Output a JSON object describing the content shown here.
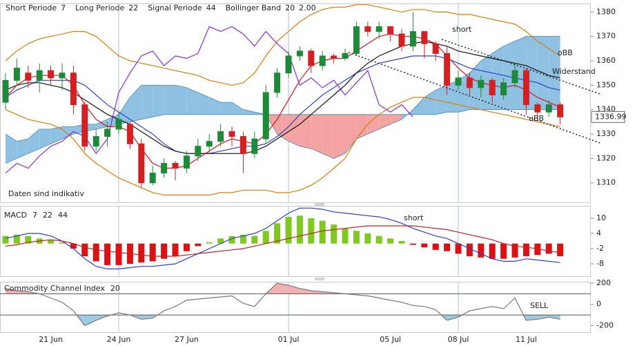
{
  "chart_data": [
    {
      "type": "candlestick",
      "legend": [
        {
          "label": "Short Periode",
          "params": [
            7
          ]
        },
        {
          "label": "Long Periode",
          "params": [
            22
          ]
        },
        {
          "label": "Signal Periode",
          "params": [
            44
          ]
        },
        {
          "label": "Bollinger Band",
          "params": [
            20,
            "2.00"
          ],
          "params_color": "#e07b00"
        }
      ],
      "categories": [
        null,
        null,
        null,
        null,
        "21 Jun",
        null,
        null,
        null,
        null,
        null,
        "24 Jun",
        null,
        null,
        null,
        null,
        null,
        "27 Jun",
        null,
        null,
        null,
        null,
        null,
        null,
        null,
        null,
        "01 Jul",
        null,
        null,
        null,
        null,
        null,
        null,
        null,
        null,
        "05 Jul",
        null,
        null,
        null,
        null,
        null,
        "08 Jul",
        null,
        null,
        null,
        null,
        null,
        "11 Jul",
        null,
        null,
        null
      ],
      "open": [
        1343,
        1352,
        1355,
        1352,
        1356,
        1353,
        1355,
        1342,
        1325,
        1329,
        1332,
        1334,
        1326,
        1310,
        1314,
        1318,
        1316,
        1321,
        1325,
        1327,
        1331,
        1329,
        1322,
        1328,
        1347,
        1355,
        1362,
        1364,
        1358,
        1362,
        1361,
        1363,
        1374,
        1372,
        1374,
        1371,
        1366,
        1372,
        1367,
        1363,
        1350,
        1353,
        1349,
        1352,
        1346,
        1351,
        1356,
        1342,
        1339,
        1342
      ],
      "high": [
        1355,
        1361,
        1358,
        1359,
        1358,
        1359,
        1358,
        1343,
        1332,
        1335,
        1339,
        1335,
        1328,
        1317,
        1320,
        1319,
        1323,
        1328,
        1330,
        1334,
        1333,
        1331,
        1331,
        1350,
        1357,
        1364,
        1366,
        1365,
        1364,
        1363,
        1365,
        1376,
        1376,
        1376,
        1374,
        1373,
        1380,
        1372,
        1368,
        1366,
        1356,
        1355,
        1354,
        1353,
        1353,
        1359,
        1357,
        1343,
        1344,
        1343
      ],
      "low": [
        1340,
        1350,
        1349,
        1347,
        1350,
        1348,
        1338,
        1323,
        1323,
        1325,
        1330,
        1324,
        1308,
        1309,
        1312,
        1311,
        1314,
        1319,
        1322,
        1325,
        1325,
        1314,
        1320,
        1326,
        1345,
        1353,
        1360,
        1355,
        1356,
        1359,
        1360,
        1362,
        1370,
        1369,
        1368,
        1364,
        1364,
        1361,
        1360,
        1346,
        1348,
        1346,
        1345,
        1343,
        1344,
        1349,
        1338,
        1336,
        1337,
        1334
      ],
      "close": [
        1352,
        1357,
        1352,
        1356,
        1353,
        1355,
        1342,
        1325,
        1329,
        1332,
        1336,
        1326,
        1310,
        1314,
        1318,
        1316,
        1321,
        1325,
        1327,
        1331,
        1329,
        1322,
        1328,
        1347,
        1355,
        1362,
        1364,
        1358,
        1362,
        1361,
        1363,
        1374,
        1372,
        1374,
        1371,
        1366,
        1372,
        1367,
        1363,
        1350,
        1353,
        1349,
        1352,
        1346,
        1351,
        1356,
        1342,
        1339,
        1342,
        1337
      ],
      "up_color": "#1d8a3a",
      "down_color": "#d42020",
      "cloud": {
        "span_a": [
          1330,
          1327,
          1328,
          1332,
          1332,
          1333,
          1333,
          1334,
          1334,
          1336,
          1338,
          1345,
          1350,
          1350,
          1350,
          1350,
          1349,
          1347,
          1345,
          1343,
          1343,
          1340,
          1339,
          1338,
          1330,
          1327,
          1325,
          1324,
          1322,
          1320,
          1322,
          1328,
          1330,
          1332,
          1334,
          1336,
          1340,
          1345,
          1348,
          1350,
          1352,
          1355,
          1360,
          1363,
          1366,
          1368,
          1370,
          1370,
          1370,
          1370
        ],
        "span_b": [
          1318,
          1320,
          1322,
          1324,
          1326,
          1328,
          1330,
          1331,
          1332,
          1333,
          1334,
          1335,
          1336,
          1337,
          1338,
          1338,
          1338,
          1338,
          1338,
          1338,
          1338,
          1338,
          1338,
          1338,
          1338,
          1338,
          1338,
          1338,
          1338,
          1338,
          1338,
          1338,
          1338,
          1338,
          1338,
          1338,
          1338,
          1338,
          1338,
          1339,
          1339,
          1340,
          1340,
          1340,
          1340,
          1340,
          1340,
          1340,
          1340,
          1340
        ],
        "up_color": "#8fc1e3",
        "down_color": "#f4a3a3",
        "line_color": "#4a86b8"
      },
      "series": [
        {
          "color": "#e07b00",
          "values": [
            1360,
            1364,
            1367,
            1369,
            1370,
            1371,
            1372,
            1372,
            1370,
            1366,
            1362,
            1360,
            1359,
            1358,
            1357,
            1356,
            1355,
            1354,
            1352,
            1351,
            1350,
            1351,
            1355,
            1362,
            1368,
            1372,
            1376,
            1379,
            1381,
            1382,
            1382,
            1383,
            1383,
            1382,
            1381,
            1380,
            1381,
            1381,
            1380,
            1380,
            1379,
            1379,
            1378,
            1377,
            1376,
            1375,
            1372,
            1368,
            1365,
            1362
          ]
        },
        {
          "color": "#e07b00",
          "values": [
            1340,
            1338,
            1336,
            1335,
            1334,
            1332,
            1328,
            1322,
            1318,
            1315,
            1312,
            1310,
            1308,
            1306,
            1305,
            1305,
            1305,
            1305,
            1305,
            1306,
            1306,
            1307,
            1307,
            1307,
            1306,
            1306,
            1307,
            1309,
            1312,
            1316,
            1320,
            1328,
            1334,
            1338,
            1341,
            1343,
            1345,
            1345,
            1344,
            1343,
            1342,
            1341,
            1340,
            1339,
            1338,
            1337,
            1336,
            1335,
            1334,
            1333
          ]
        },
        {
          "color": "#2a3fd0",
          "values": [
            1345,
            1348,
            1350,
            1352,
            1352,
            1352,
            1352,
            1350,
            1346,
            1342,
            1339,
            1336,
            1333,
            1330,
            1326,
            1323,
            1322,
            1322,
            1322,
            1323,
            1324,
            1325,
            1325,
            1326,
            1329,
            1333,
            1338,
            1342,
            1346,
            1349,
            1352,
            1355,
            1357,
            1359,
            1360,
            1361,
            1362,
            1362,
            1362,
            1361,
            1359,
            1357,
            1356,
            1355,
            1354,
            1353,
            1352,
            1351,
            1349,
            1348
          ]
        },
        {
          "color": "#8a2be2",
          "values": [
            1314,
            1318,
            1316,
            1321,
            1325,
            1327,
            1331,
            1329,
            1322,
            1328,
            1347,
            1355,
            1362,
            1364,
            1358,
            1362,
            1361,
            1363,
            1374,
            1372,
            1374,
            1371,
            1366,
            1372,
            1367,
            1363,
            1350,
            1353,
            1349,
            1352,
            1346,
            1351,
            1356,
            1342,
            1339,
            1342,
            1337,
            null,
            null,
            null,
            null,
            null,
            null,
            null,
            null,
            null,
            null,
            null,
            null,
            null
          ]
        },
        {
          "color": "#111111",
          "values": [
            1348,
            1350,
            1351,
            1351,
            1350,
            1349,
            1347,
            1344,
            1341,
            1338,
            1336,
            1334,
            1331,
            1328,
            1325,
            1323,
            1322,
            1322,
            1322,
            1322,
            1322,
            1322,
            1323,
            1325,
            1328,
            1331,
            1334,
            1338,
            1342,
            1346,
            1350,
            1355,
            1359,
            1362,
            1364,
            1366,
            1367,
            1368,
            1367,
            1366,
            1364,
            1363,
            1362,
            1361,
            1360,
            1359,
            1358,
            1356,
            1354,
            1353
          ]
        },
        {
          "color": "#e0101a",
          "values": [
            1345,
            1350,
            1353,
            1354,
            1354,
            1354,
            1350,
            1342,
            1336,
            1333,
            1333,
            1331,
            1324,
            1318,
            1316,
            1316,
            1317,
            1320,
            1323,
            1326,
            1328,
            1327,
            1326,
            1330,
            1336,
            1344,
            1352,
            1358,
            1360,
            1361,
            1361,
            1364,
            1367,
            1370,
            1371,
            1370,
            1370,
            1369,
            1367,
            1362,
            1357,
            1353,
            1351,
            1350,
            1349,
            1350,
            1348,
            1345,
            1343,
            1341
          ]
        }
      ],
      "annotations": [
        "short",
        "oBB",
        "Widerstand",
        "uBB",
        "Daten sind indikativ"
      ],
      "last_price": 1336.99,
      "ylim": [
        1302,
        1383.5
      ],
      "yticks": [
        1310,
        1320,
        1330,
        1340,
        1350,
        1360,
        1370,
        1380
      ]
    },
    {
      "type": "macd",
      "title": "MACD",
      "params": [
        7,
        22,
        44
      ],
      "params_color": "#d42020",
      "annotations": [
        "short"
      ],
      "histogram": [
        3,
        3.5,
        3,
        2,
        1.5,
        0.5,
        -2,
        -5,
        -7,
        -8.5,
        -8.5,
        -8,
        -7.5,
        -7,
        -6,
        -5,
        -3,
        -1,
        0.5,
        2,
        3,
        3.5,
        3,
        5,
        8,
        10.5,
        11,
        10,
        9,
        7.5,
        6,
        5,
        4,
        3,
        2,
        1,
        -0.5,
        -1.5,
        -2.5,
        -3,
        -4,
        -5,
        -5.5,
        -6,
        -6,
        -5.5,
        -5,
        -4.5,
        -4,
        -5
      ],
      "pos_color": "#7ec820",
      "neg_color": "#dd1111",
      "series": [
        {
          "color": "#2a3fd0",
          "values": [
            2,
            3,
            4,
            4,
            3,
            1,
            -2,
            -6,
            -9,
            -10,
            -10,
            -9.5,
            -9,
            -9,
            -8.5,
            -8,
            -6,
            -4,
            -2,
            0,
            2,
            3,
            4,
            6,
            9,
            12,
            14,
            14,
            13.5,
            12.5,
            12,
            11.5,
            11,
            10.5,
            9.5,
            8,
            6,
            4.5,
            3,
            2,
            0,
            -2,
            -4,
            -6,
            -7,
            -7,
            -6,
            -6.5,
            -7,
            -7.5
          ]
        },
        {
          "color": "#c81e1e",
          "values": [
            -1,
            -0.5,
            0.5,
            1,
            1.5,
            1,
            0,
            -1.5,
            -2.5,
            -3,
            -3.5,
            -4,
            -4.5,
            -5,
            -5,
            -5,
            -4.5,
            -4,
            -3.5,
            -3,
            -2.5,
            -2,
            -1,
            0,
            1,
            2,
            3,
            4,
            5,
            5.5,
            6,
            6.5,
            7,
            7,
            7,
            7,
            7,
            6.5,
            6,
            5.5,
            4.5,
            3.5,
            2.5,
            1.5,
            0,
            -1,
            -1.5,
            -2,
            -3,
            -3.5
          ]
        }
      ],
      "ylim": [
        -12.9,
        14.9
      ],
      "yticks": [
        10,
        4,
        -2,
        -8
      ]
    },
    {
      "type": "cci",
      "title": "Commodity Channel Index",
      "params": [
        20
      ],
      "annotations": [
        "SELL"
      ],
      "values": [
        150,
        130,
        120,
        100,
        60,
        20,
        -60,
        -200,
        -150,
        -110,
        -80,
        -100,
        -140,
        -130,
        -60,
        -20,
        40,
        50,
        60,
        70,
        80,
        10,
        -20,
        100,
        200,
        180,
        150,
        130,
        120,
        110,
        100,
        90,
        80,
        60,
        40,
        20,
        -10,
        -20,
        -50,
        -150,
        -120,
        -60,
        -40,
        -20,
        -40,
        60,
        -150,
        -140,
        -120,
        -140
      ],
      "color": "#777777",
      "levels": [
        100,
        -100
      ],
      "upper_fill": "#f2b0b0",
      "lower_fill": "#9ecbe6",
      "ylim": [
        -262,
        213
      ],
      "yticks": [
        200,
        0,
        -200
      ]
    }
  ]
}
